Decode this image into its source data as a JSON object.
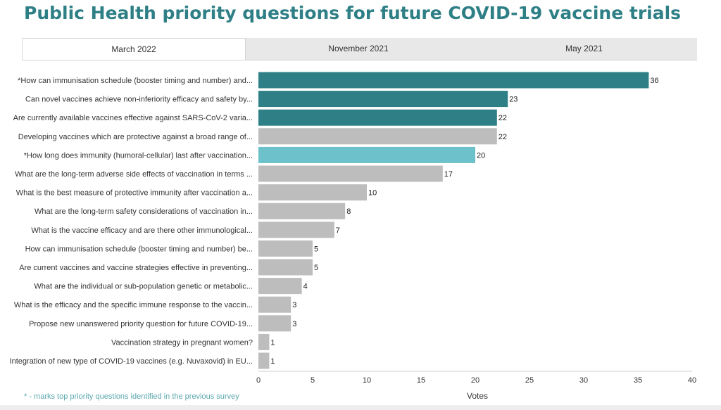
{
  "title": "Public Health priority questions for future COVID-19 vaccine trials",
  "tabs": [
    {
      "label": "March 2022",
      "active": true
    },
    {
      "label": "November 2021",
      "active": false
    },
    {
      "label": "May 2021",
      "active": false
    }
  ],
  "footnote": "* - marks top priority questions identified in the previous survey",
  "colors": {
    "title": "#2e7f86",
    "teal_dark": "#2e7f86",
    "teal_light": "#6cc1cb",
    "gray": "#bdbdbd"
  },
  "chart_data": {
    "type": "bar",
    "orientation": "horizontal",
    "xlabel": "Votes",
    "ylabel": "",
    "xlim": [
      0,
      40
    ],
    "xticks": [
      0,
      5,
      10,
      15,
      20,
      25,
      30,
      35,
      40
    ],
    "grid": false,
    "categories": [
      "*How can immunisation schedule (booster timing and number) and...",
      "Can novel vaccines achieve non-inferiority efficacy and safety by...",
      "Are currently available vaccines effective against SARS-CoV-2 varia...",
      "Developing vaccines which are protective against a broad range of...",
      "*How long does immunity (humoral-cellular) last after vaccination...",
      "What are the long-term adverse side effects of vaccination in terms ...",
      "What is the best measure of protective immunity after vaccination a...",
      "What are the long-term safety considerations of vaccination in...",
      "What is the vaccine efficacy and are there other immunological...",
      "How can immunisation schedule (booster timing and number) be...",
      "Are current vaccines and vaccine strategies effective in preventing...",
      "What are the individual or sub-population genetic or metabolic...",
      "What is the efficacy and the specific immune response to the vaccin...",
      "Propose new unanswered priority question for future COVID-19...",
      "Vaccination strategy in pregnant women?",
      "Integration of new type of COVID-19 vaccines (e.g. Nuvaxovid) in EU..."
    ],
    "values": [
      36,
      23,
      22,
      22,
      20,
      17,
      10,
      8,
      7,
      5,
      5,
      4,
      3,
      3,
      1,
      1
    ],
    "bar_colors": [
      "teal_dark",
      "teal_dark",
      "teal_dark",
      "gray",
      "teal_light",
      "gray",
      "gray",
      "gray",
      "gray",
      "gray",
      "gray",
      "gray",
      "gray",
      "gray",
      "gray",
      "gray"
    ]
  }
}
